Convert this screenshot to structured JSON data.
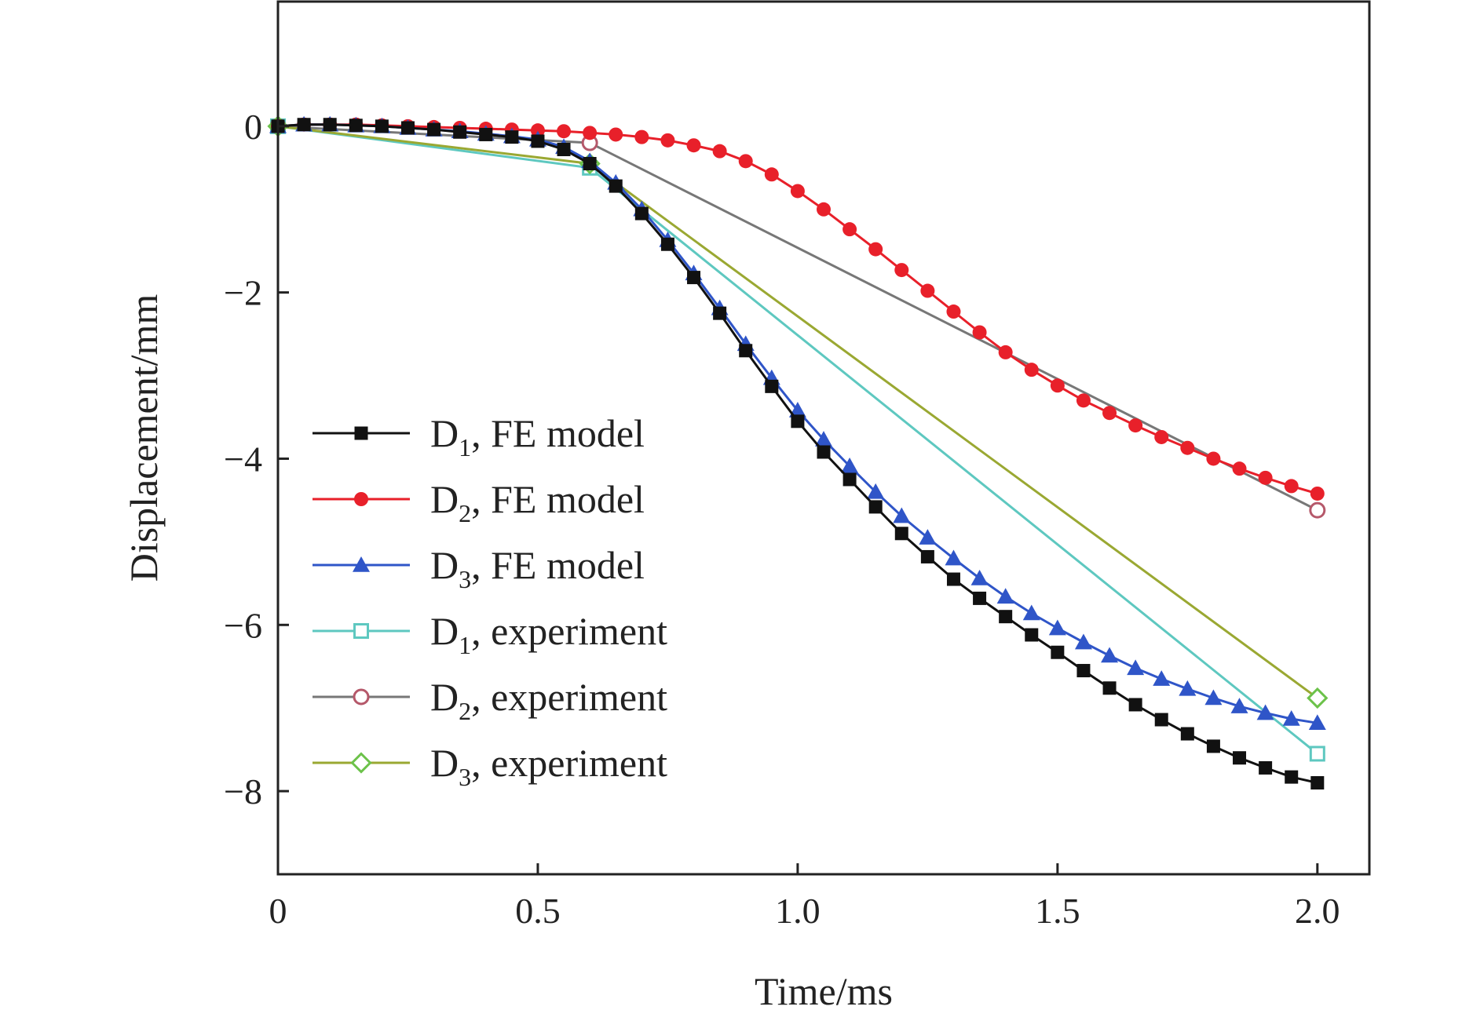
{
  "chart_data": {
    "type": "line",
    "title": "",
    "xlabel": "Time/ms",
    "ylabel": "Displacement/mm",
    "xlim": [
      0,
      2.1
    ],
    "ylim": [
      -9,
      1.5
    ],
    "xticks": [
      0,
      0.5,
      1.0,
      1.5,
      2.0
    ],
    "xtick_labels": [
      "0",
      "0.5",
      "1.0",
      "1.5",
      "2.0"
    ],
    "yticks": [
      0,
      -2,
      -4,
      -6,
      -8
    ],
    "ytick_labels": [
      "0",
      "−2",
      "−4",
      "−6",
      "−8"
    ],
    "grid": false,
    "legend_position": "left",
    "series": [
      {
        "name": "D1, FE model",
        "label_main": "D",
        "label_sub": "1",
        "label_rest": ", FE model",
        "color": "#111111",
        "marker": "square-filled",
        "x": [
          0,
          0.05,
          0.1,
          0.15,
          0.2,
          0.25,
          0.3,
          0.35,
          0.4,
          0.45,
          0.5,
          0.55,
          0.6,
          0.65,
          0.7,
          0.75,
          0.8,
          0.85,
          0.9,
          0.95,
          1.0,
          1.05,
          1.1,
          1.15,
          1.2,
          1.25,
          1.3,
          1.35,
          1.4,
          1.45,
          1.5,
          1.55,
          1.6,
          1.65,
          1.7,
          1.75,
          1.8,
          1.85,
          1.9,
          1.95,
          2.0
        ],
        "y": [
          0,
          0.02,
          0.02,
          0.01,
          0,
          -0.02,
          -0.04,
          -0.07,
          -0.1,
          -0.13,
          -0.18,
          -0.28,
          -0.45,
          -0.72,
          -1.05,
          -1.42,
          -1.82,
          -2.25,
          -2.7,
          -3.13,
          -3.55,
          -3.92,
          -4.25,
          -4.58,
          -4.9,
          -5.18,
          -5.45,
          -5.68,
          -5.9,
          -6.12,
          -6.33,
          -6.55,
          -6.76,
          -6.96,
          -7.14,
          -7.31,
          -7.46,
          -7.6,
          -7.72,
          -7.83,
          -7.9
        ]
      },
      {
        "name": "D2, FE model",
        "label_main": "D",
        "label_sub": "2",
        "label_rest": ", FE model",
        "color": "#e8202a",
        "marker": "circle-filled",
        "x": [
          0,
          0.05,
          0.1,
          0.15,
          0.2,
          0.25,
          0.3,
          0.35,
          0.4,
          0.45,
          0.5,
          0.55,
          0.6,
          0.65,
          0.7,
          0.75,
          0.8,
          0.85,
          0.9,
          0.95,
          1.0,
          1.05,
          1.1,
          1.15,
          1.2,
          1.25,
          1.3,
          1.35,
          1.4,
          1.45,
          1.5,
          1.55,
          1.6,
          1.65,
          1.7,
          1.75,
          1.8,
          1.85,
          1.9,
          1.95,
          2.0
        ],
        "y": [
          0,
          0.02,
          0.02,
          0.02,
          0.01,
          0,
          -0.01,
          -0.02,
          -0.03,
          -0.04,
          -0.05,
          -0.06,
          -0.08,
          -0.1,
          -0.13,
          -0.17,
          -0.23,
          -0.3,
          -0.42,
          -0.58,
          -0.78,
          -1.0,
          -1.24,
          -1.48,
          -1.73,
          -1.98,
          -2.23,
          -2.48,
          -2.72,
          -2.93,
          -3.12,
          -3.3,
          -3.45,
          -3.6,
          -3.74,
          -3.87,
          -4.0,
          -4.12,
          -4.23,
          -4.33,
          -4.42
        ]
      },
      {
        "name": "D3, FE model",
        "label_main": "D",
        "label_sub": "3",
        "label_rest": ", FE model",
        "color": "#2f55c8",
        "marker": "triangle-filled",
        "x": [
          0,
          0.05,
          0.1,
          0.15,
          0.2,
          0.25,
          0.3,
          0.35,
          0.4,
          0.45,
          0.5,
          0.55,
          0.6,
          0.65,
          0.7,
          0.75,
          0.8,
          0.85,
          0.9,
          0.95,
          1.0,
          1.05,
          1.1,
          1.15,
          1.2,
          1.25,
          1.3,
          1.35,
          1.4,
          1.45,
          1.5,
          1.55,
          1.6,
          1.65,
          1.7,
          1.75,
          1.8,
          1.85,
          1.9,
          1.95,
          2.0
        ],
        "y": [
          0,
          0.02,
          0.02,
          0.01,
          0,
          -0.02,
          -0.04,
          -0.06,
          -0.09,
          -0.12,
          -0.16,
          -0.25,
          -0.42,
          -0.68,
          -1.0,
          -1.37,
          -1.77,
          -2.19,
          -2.62,
          -3.03,
          -3.42,
          -3.77,
          -4.09,
          -4.4,
          -4.69,
          -4.95,
          -5.2,
          -5.44,
          -5.66,
          -5.86,
          -6.04,
          -6.21,
          -6.37,
          -6.52,
          -6.65,
          -6.77,
          -6.88,
          -6.98,
          -7.06,
          -7.13,
          -7.18
        ]
      },
      {
        "name": "D1, experiment",
        "label_main": "D",
        "label_sub": "1",
        "label_rest": ", experiment",
        "color": "#5ec8c0",
        "marker": "square-open",
        "x": [
          0,
          0.6,
          2.0
        ],
        "y": [
          0,
          -0.5,
          -7.55
        ]
      },
      {
        "name": "D2, experiment",
        "label_main": "D",
        "label_sub": "2",
        "label_rest": ", experiment",
        "color": "#777777",
        "marker_color": "#b5586a",
        "marker": "circle-open",
        "x": [
          0,
          0.6,
          2.0
        ],
        "y": [
          0,
          -0.2,
          -4.62
        ]
      },
      {
        "name": "D3, experiment",
        "label_main": "D",
        "label_sub": "3",
        "label_rest": ", experiment",
        "color": "#9aa832",
        "marker_color": "#6cc24a",
        "marker": "diamond-open",
        "x": [
          0,
          0.6,
          2.0
        ],
        "y": [
          0,
          -0.45,
          -6.88
        ]
      }
    ]
  }
}
